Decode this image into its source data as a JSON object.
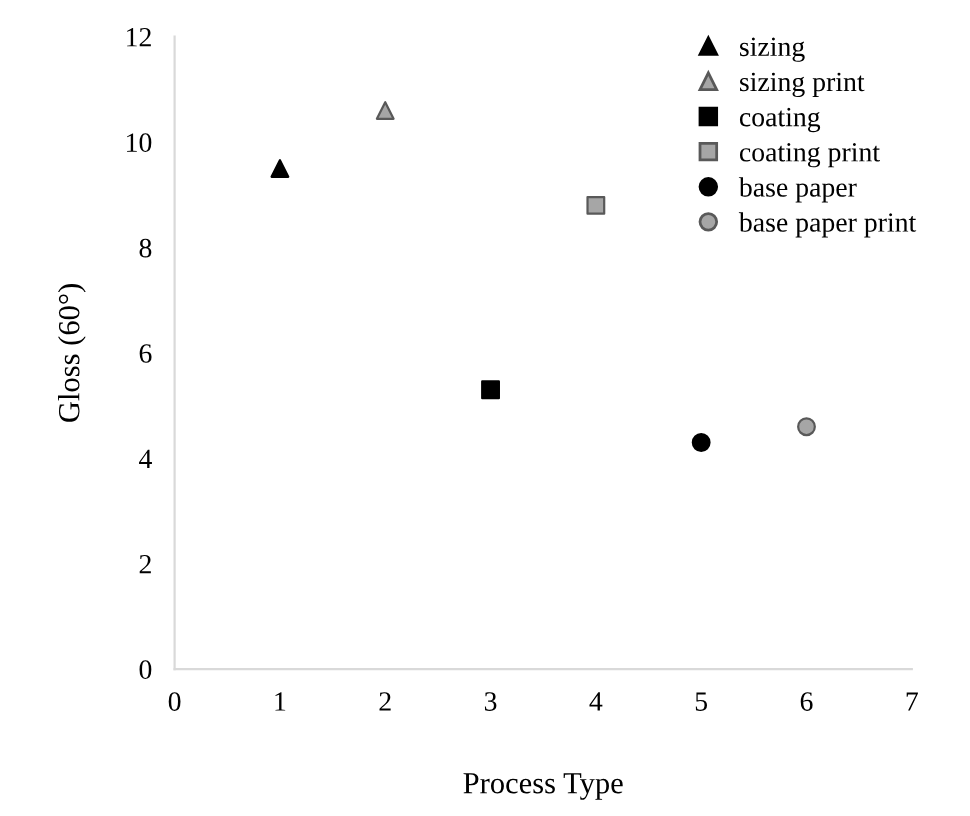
{
  "chart_data": {
    "type": "scatter",
    "xlabel": "Process Type",
    "ylabel": "Gloss (60°)",
    "xlim": [
      0,
      7
    ],
    "xticks": [
      0,
      1,
      2,
      3,
      4,
      5,
      6,
      7
    ],
    "ylim": [
      0,
      12
    ],
    "yticks": [
      0,
      2,
      4,
      6,
      8,
      10,
      12
    ],
    "grid": false,
    "legend": "top right",
    "series": [
      {
        "name": "sizing",
        "color": "#000000",
        "marker": "triangle",
        "x": [
          1
        ],
        "values": [
          9.5
        ]
      },
      {
        "name": "sizing print",
        "color": "#a6a6a6",
        "marker": "triangle",
        "x": [
          2
        ],
        "values": [
          10.6
        ]
      },
      {
        "name": "coating",
        "color": "#000000",
        "marker": "square",
        "x": [
          3
        ],
        "values": [
          5.3
        ]
      },
      {
        "name": "coating print",
        "color": "#a6a6a6",
        "marker": "square",
        "x": [
          4
        ],
        "values": [
          8.8
        ]
      },
      {
        "name": "base paper",
        "color": "#000000",
        "marker": "circle",
        "x": [
          5
        ],
        "values": [
          4.3
        ]
      },
      {
        "name": "base paper print",
        "color": "#a6a6a6",
        "marker": "circle",
        "x": [
          6
        ],
        "values": [
          4.6
        ]
      }
    ]
  }
}
